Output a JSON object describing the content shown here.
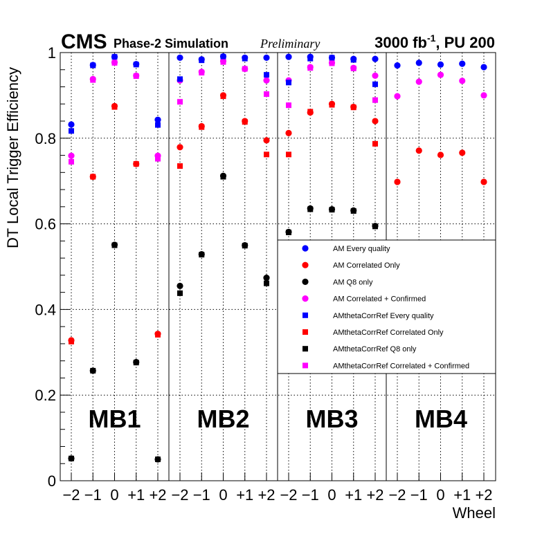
{
  "header": {
    "cms": "CMS",
    "phase": "Phase-2 Simulation",
    "prelim": "Preliminary",
    "lumi_main": "3000 fb",
    "lumi_exp": "-1",
    "lumi_rest": ", PU 200"
  },
  "chart_data": {
    "type": "scatter",
    "title": "",
    "xlabel": "Wheel",
    "ylabel": "DT Local Trigger Efficiency",
    "ylim": [
      0,
      1
    ],
    "yticks": [
      "0",
      "0.2",
      "0.4",
      "0.6",
      "0.8",
      "1"
    ],
    "y_tick_values": [
      0,
      0.2,
      0.4,
      0.6,
      0.8,
      1.0
    ],
    "grid": true,
    "legend_position": "right, inside MB3-MB4 panels",
    "stations": [
      {
        "name": "MB1",
        "wheel_labels": [
          "−2",
          "−1",
          "0",
          "+1",
          "+2"
        ]
      },
      {
        "name": "MB2",
        "wheel_labels": [
          "−2",
          "−1",
          "0",
          "+1",
          "+2"
        ]
      },
      {
        "name": "MB3",
        "wheel_labels": [
          "−2",
          "−1",
          "0",
          "+1",
          "+2"
        ]
      },
      {
        "name": "MB4",
        "wheel_labels": [
          "−2",
          "−1",
          "0",
          "+1",
          "+2"
        ]
      }
    ],
    "series": [
      {
        "name": "AM Every quality",
        "marker": "circle",
        "color": "#0000ff",
        "values": [
          [
            0.832,
            0.971,
            0.99,
            0.973,
            0.843
          ],
          [
            0.988,
            0.984,
            0.991,
            0.988,
            0.988
          ],
          [
            0.99,
            0.99,
            0.988,
            0.985,
            0.985
          ],
          [
            0.97,
            0.976,
            0.972,
            0.974,
            0.966
          ]
        ]
      },
      {
        "name": "AM Correlated Only",
        "marker": "circle",
        "color": "#ff0000",
        "values": [
          [
            0.328,
            0.71,
            0.875,
            0.74,
            0.343
          ],
          [
            0.779,
            0.828,
            0.9,
            0.84,
            0.795
          ],
          [
            0.812,
            0.86,
            0.88,
            0.873,
            0.84
          ],
          [
            0.698,
            0.771,
            0.761,
            0.766,
            0.698
          ]
        ]
      },
      {
        "name": "AM Q8 only",
        "marker": "circle",
        "color": "#000000",
        "values": [
          [
            0.052,
            0.257,
            0.551,
            0.277,
            0.05
          ],
          [
            0.455,
            0.529,
            0.712,
            0.55,
            0.474
          ],
          [
            0.581,
            0.636,
            0.634,
            0.631,
            0.595
          ],
          [
            null,
            null,
            null,
            null,
            null
          ]
        ]
      },
      {
        "name": "AM Correlated + Confirmed",
        "marker": "circle",
        "color": "#ff00ff",
        "values": [
          [
            0.759,
            0.938,
            0.977,
            0.946,
            0.759
          ],
          [
            0.935,
            0.955,
            0.98,
            0.962,
            0.935
          ],
          [
            0.935,
            0.966,
            0.976,
            0.964,
            0.946
          ],
          [
            0.898,
            0.932,
            0.948,
            0.934,
            0.9
          ]
        ]
      },
      {
        "name": "AMthetaCorrRef Every quality",
        "marker": "square",
        "color": "#0000ff",
        "values": [
          [
            0.817,
            0.97,
            0.99,
            0.972,
            0.831
          ],
          [
            0.938,
            0.982,
            0.99,
            0.986,
            0.948
          ],
          [
            0.93,
            0.986,
            0.988,
            0.983,
            0.926
          ],
          [
            null,
            null,
            null,
            null,
            null
          ]
        ]
      },
      {
        "name": "AMthetaCorrRef Correlated Only",
        "marker": "square",
        "color": "#ff0000",
        "values": [
          [
            0.325,
            0.71,
            0.873,
            0.74,
            0.341
          ],
          [
            0.735,
            0.826,
            0.898,
            0.838,
            0.762
          ],
          [
            0.762,
            0.862,
            0.878,
            0.872,
            0.787
          ],
          [
            null,
            null,
            null,
            null,
            null
          ]
        ]
      },
      {
        "name": "AMthetaCorrRef Q8 only",
        "marker": "square",
        "color": "#000000",
        "values": [
          [
            0.052,
            0.257,
            0.55,
            0.276,
            0.05
          ],
          [
            0.438,
            0.528,
            0.71,
            0.549,
            0.461
          ],
          [
            0.58,
            0.634,
            0.633,
            0.63,
            0.594
          ],
          [
            null,
            null,
            null,
            null,
            null
          ]
        ]
      },
      {
        "name": "AMthetaCorrRef Correlated + Confirmed",
        "marker": "square",
        "color": "#ff00ff",
        "values": [
          [
            0.745,
            0.936,
            0.976,
            0.945,
            0.752
          ],
          [
            0.885,
            0.953,
            0.978,
            0.962,
            0.903
          ],
          [
            0.877,
            0.964,
            0.975,
            0.963,
            0.889
          ],
          [
            null,
            null,
            null,
            null,
            null
          ]
        ]
      }
    ]
  }
}
